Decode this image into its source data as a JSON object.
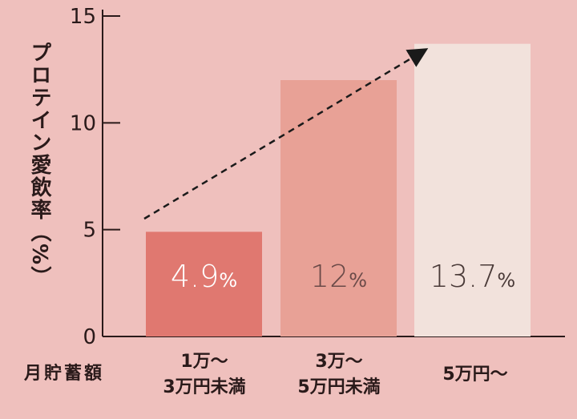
{
  "chart_data": {
    "type": "bar",
    "title": "",
    "ylabel": "プロテイン愛飲率（%）",
    "xlabel": "月貯蓄額",
    "categories": [
      "1万～\n3万円未満",
      "3万～\n5万円未満",
      "5万円～"
    ],
    "values": [
      4.9,
      12,
      13.7
    ],
    "data_labels": [
      {
        "number": "4.9",
        "unit": "%"
      },
      {
        "number": "12",
        "unit": "%"
      },
      {
        "number": "13.7",
        "unit": "%"
      }
    ],
    "bar_colors": [
      "#e07870",
      "#e8a196",
      "#f2e2dc"
    ],
    "label_colors": [
      "#ffffff",
      "#6a4a48",
      "#4a3a38"
    ],
    "ylim": [
      0,
      15
    ],
    "yticks": [
      "0",
      "5",
      "10",
      "15"
    ],
    "trend_arrow": true,
    "grid": false
  }
}
